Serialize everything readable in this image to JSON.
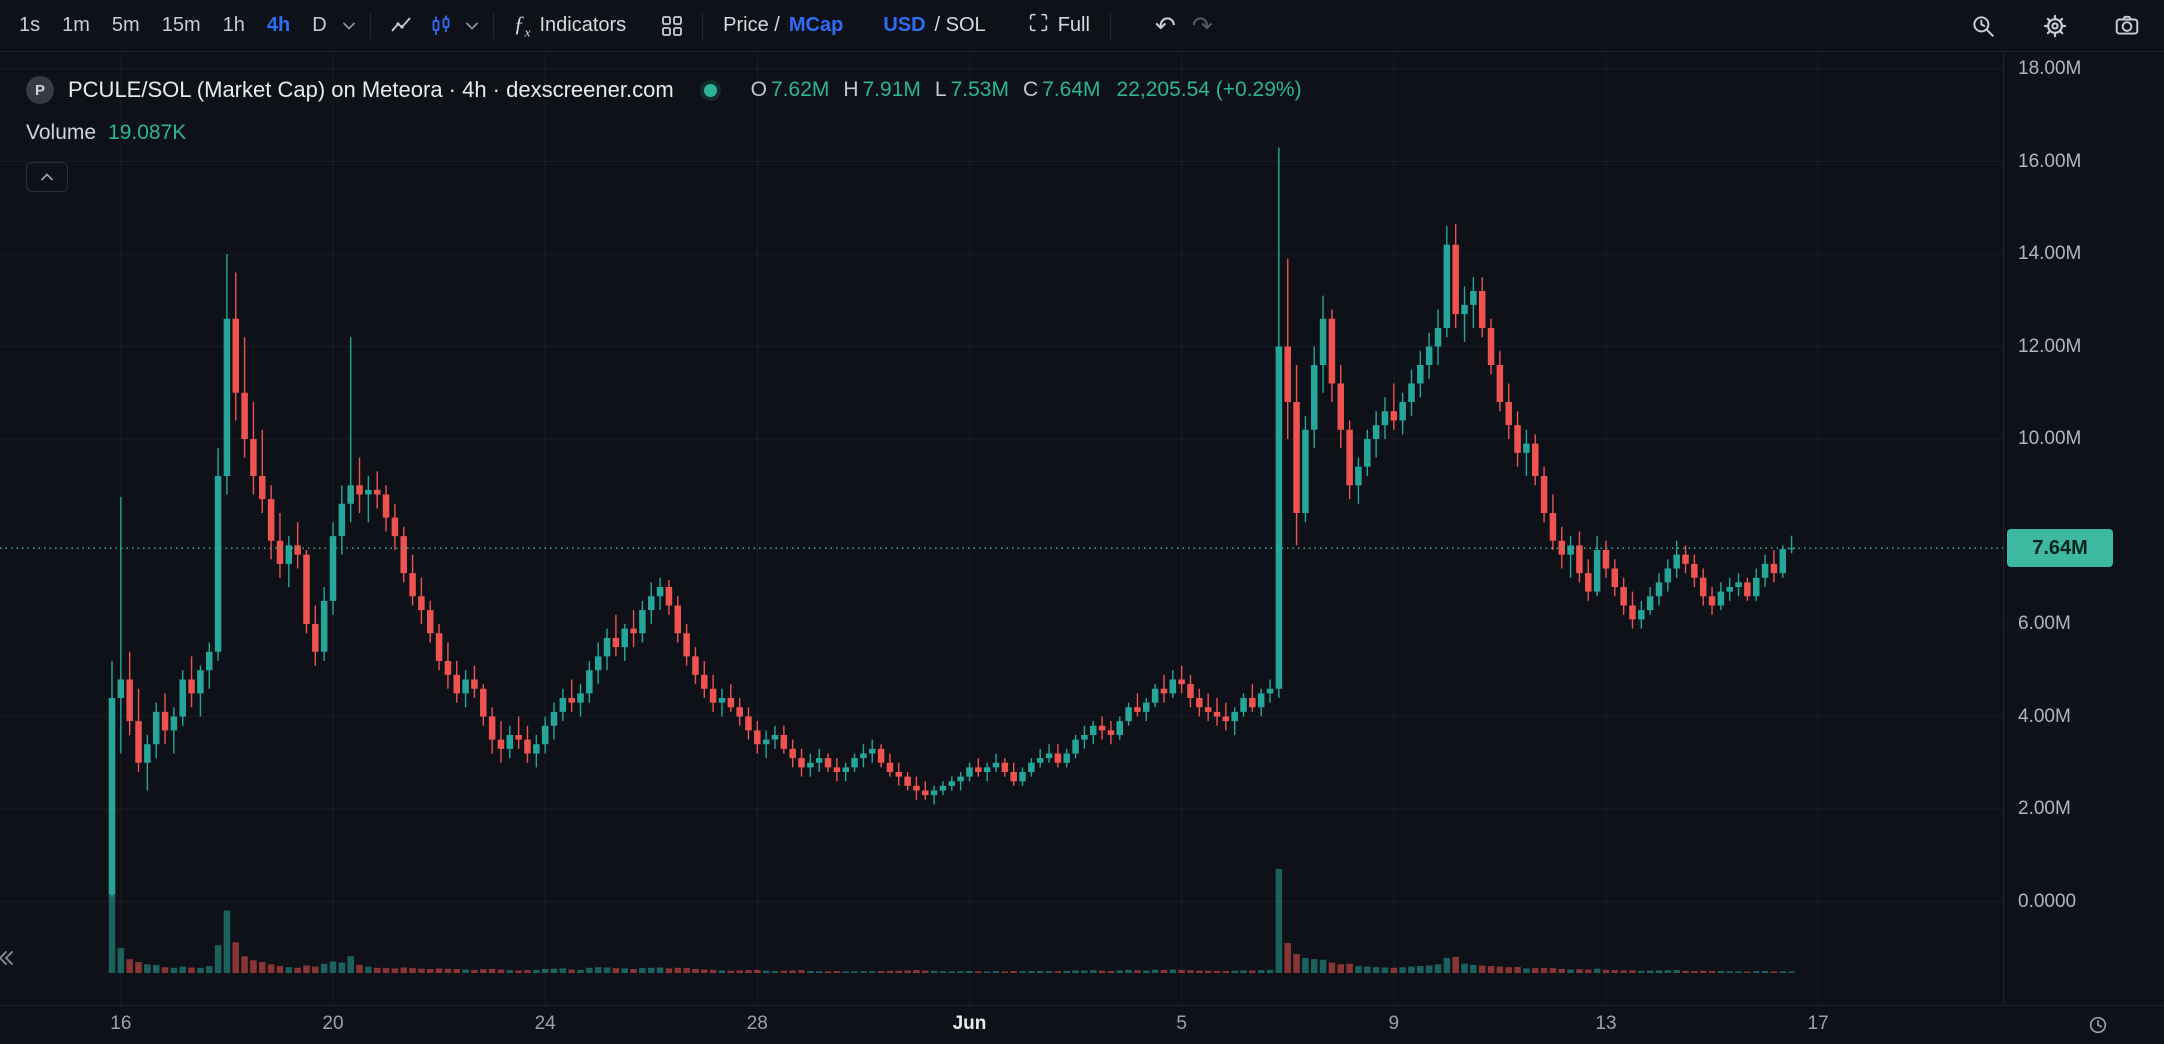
{
  "toolbar": {
    "timeframes": [
      "1s",
      "1m",
      "5m",
      "15m",
      "1h",
      "4h",
      "D"
    ],
    "active_timeframe": "4h",
    "indicators_label": "Indicators",
    "price_mcap": {
      "prefix": "Price / ",
      "active": "MCap"
    },
    "usd_sol": {
      "active": "USD",
      "suffix": " / SOL"
    },
    "full_label": "Full"
  },
  "icons": {
    "undo": "↶",
    "redo": "↷"
  },
  "legend": {
    "symbol_badge": "P",
    "title": "PCULE/SOL (Market Cap) on Meteora · 4h · dexscreener.com",
    "ohlc": {
      "o_label": "O",
      "o": "7.62M",
      "h_label": "H",
      "h": "7.91M",
      "l_label": "L",
      "l": "7.53M",
      "c_label": "C",
      "c": "7.64M",
      "change": "22,205.54 (+0.29%)"
    },
    "volume_label": "Volume",
    "volume_value": "19.087K"
  },
  "price_scale": {
    "labels": [
      {
        "text": "18.00M",
        "value": 18
      },
      {
        "text": "16.00M",
        "value": 16
      },
      {
        "text": "14.00M",
        "value": 14
      },
      {
        "text": "12.00M",
        "value": 12
      },
      {
        "text": "10.00M",
        "value": 10
      },
      {
        "text": "6.00M",
        "value": 6
      },
      {
        "text": "4.00M",
        "value": 4
      },
      {
        "text": "2.00M",
        "value": 2
      },
      {
        "text": "0.0000",
        "value": 0
      }
    ],
    "current": {
      "text": "7.64M",
      "value": 7.64
    }
  },
  "time_scale": {
    "ticks": [
      {
        "label": "16",
        "i": 1
      },
      {
        "label": "20",
        "i": 25
      },
      {
        "label": "24",
        "i": 49
      },
      {
        "label": "28",
        "i": 73
      },
      {
        "label": "Jun",
        "i": 97,
        "major": true
      },
      {
        "label": "5",
        "i": 121
      },
      {
        "label": "9",
        "i": 145
      },
      {
        "label": "13",
        "i": 169
      },
      {
        "label": "17",
        "i": 193
      }
    ]
  },
  "colors": {
    "accent_blue": "#2f6df6",
    "up": "#26a69a",
    "down": "#ef5350",
    "vol_up": "rgba(38,166,154,0.55)",
    "vol_down": "rgba(239,83,80,0.55)",
    "grid": "rgba(160,172,196,0.08)",
    "current_line": "#3cb9a0",
    "badge_bg": "#3cb9a0",
    "badge_text": "#07231d",
    "ohlc_green": "#2db49b"
  },
  "chart_data": {
    "type": "candlestick",
    "pair": "PCULE/SOL",
    "metric": "Market Cap",
    "dex": "Meteora",
    "source": "dexscreener.com",
    "interval": "4h",
    "y_range_millions": [
      0,
      18
    ],
    "volume_units": "K",
    "x_tick_labels": [
      "16",
      "20",
      "24",
      "28",
      "Jun",
      "5",
      "9",
      "13",
      "17"
    ],
    "ohlcv_millions": [
      [
        0.15,
        5.2,
        0.1,
        4.4,
        1560
      ],
      [
        4.4,
        8.75,
        3.2,
        4.8,
        430
      ],
      [
        4.8,
        5.4,
        3.6,
        3.9,
        240
      ],
      [
        3.9,
        4.6,
        2.8,
        3.0,
        190
      ],
      [
        3.0,
        3.6,
        2.4,
        3.4,
        150
      ],
      [
        3.4,
        4.3,
        3.1,
        4.1,
        140
      ],
      [
        4.1,
        4.5,
        3.4,
        3.7,
        100
      ],
      [
        3.7,
        4.2,
        3.2,
        4.0,
        90
      ],
      [
        4.0,
        5.0,
        3.8,
        4.8,
        110
      ],
      [
        4.8,
        5.3,
        4.2,
        4.5,
        95
      ],
      [
        4.5,
        5.1,
        4.0,
        5.0,
        90
      ],
      [
        5.0,
        5.6,
        4.6,
        5.4,
        120
      ],
      [
        5.4,
        9.8,
        5.2,
        9.2,
        480
      ],
      [
        9.2,
        14.0,
        8.8,
        12.6,
        1080
      ],
      [
        12.6,
        13.6,
        10.4,
        11.0,
        530
      ],
      [
        11.0,
        12.2,
        9.6,
        10.0,
        290
      ],
      [
        10.0,
        10.8,
        8.8,
        9.2,
        220
      ],
      [
        9.2,
        10.2,
        8.4,
        8.7,
        190
      ],
      [
        8.7,
        9.0,
        7.4,
        7.8,
        150
      ],
      [
        7.8,
        8.4,
        7.0,
        7.3,
        120
      ],
      [
        7.3,
        7.9,
        6.8,
        7.7,
        100
      ],
      [
        7.7,
        8.2,
        7.2,
        7.5,
        90
      ],
      [
        7.5,
        7.6,
        5.8,
        6.0,
        130
      ],
      [
        6.0,
        6.4,
        5.1,
        5.4,
        110
      ],
      [
        5.4,
        6.8,
        5.2,
        6.5,
        160
      ],
      [
        6.5,
        8.2,
        6.2,
        7.9,
        200
      ],
      [
        7.9,
        9.0,
        7.5,
        8.6,
        180
      ],
      [
        8.6,
        12.2,
        8.2,
        9.0,
        290
      ],
      [
        9.0,
        9.6,
        8.4,
        8.8,
        140
      ],
      [
        8.8,
        9.2,
        8.2,
        8.9,
        110
      ],
      [
        8.9,
        9.3,
        8.5,
        8.8,
        90
      ],
      [
        8.8,
        9.0,
        8.0,
        8.3,
        85
      ],
      [
        8.3,
        8.6,
        7.6,
        7.9,
        80
      ],
      [
        7.9,
        8.1,
        6.9,
        7.1,
        95
      ],
      [
        7.1,
        7.5,
        6.4,
        6.6,
        85
      ],
      [
        6.6,
        7.0,
        6.0,
        6.3,
        75
      ],
      [
        6.3,
        6.5,
        5.6,
        5.8,
        70
      ],
      [
        5.8,
        6.0,
        5.0,
        5.2,
        80
      ],
      [
        5.2,
        5.6,
        4.6,
        4.9,
        75
      ],
      [
        4.9,
        5.2,
        4.3,
        4.5,
        70
      ],
      [
        4.5,
        5.0,
        4.2,
        4.8,
        60
      ],
      [
        4.8,
        5.1,
        4.4,
        4.6,
        55
      ],
      [
        4.6,
        4.7,
        3.8,
        4.0,
        65
      ],
      [
        4.0,
        4.2,
        3.2,
        3.5,
        70
      ],
      [
        3.5,
        3.9,
        3.0,
        3.3,
        60
      ],
      [
        3.3,
        3.8,
        3.1,
        3.6,
        50
      ],
      [
        3.6,
        4.0,
        3.3,
        3.5,
        45
      ],
      [
        3.5,
        3.8,
        3.0,
        3.2,
        50
      ],
      [
        3.2,
        3.6,
        2.9,
        3.4,
        55
      ],
      [
        3.4,
        4.0,
        3.2,
        3.8,
        70
      ],
      [
        3.8,
        4.3,
        3.5,
        4.1,
        75
      ],
      [
        4.1,
        4.6,
        3.9,
        4.4,
        80
      ],
      [
        4.4,
        4.8,
        4.1,
        4.3,
        60
      ],
      [
        4.3,
        4.7,
        4.0,
        4.5,
        55
      ],
      [
        4.5,
        5.2,
        4.3,
        5.0,
        90
      ],
      [
        5.0,
        5.6,
        4.7,
        5.3,
        100
      ],
      [
        5.3,
        5.9,
        5.0,
        5.7,
        95
      ],
      [
        5.7,
        6.2,
        5.3,
        5.5,
        85
      ],
      [
        5.5,
        6.0,
        5.2,
        5.9,
        80
      ],
      [
        5.9,
        6.3,
        5.5,
        5.8,
        70
      ],
      [
        5.8,
        6.5,
        5.6,
        6.3,
        85
      ],
      [
        6.3,
        6.9,
        6.0,
        6.6,
        90
      ],
      [
        6.6,
        7.0,
        6.3,
        6.8,
        95
      ],
      [
        6.8,
        6.95,
        6.2,
        6.4,
        80
      ],
      [
        6.4,
        6.6,
        5.6,
        5.8,
        90
      ],
      [
        5.8,
        6.0,
        5.1,
        5.3,
        85
      ],
      [
        5.3,
        5.5,
        4.7,
        4.9,
        70
      ],
      [
        4.9,
        5.2,
        4.4,
        4.6,
        60
      ],
      [
        4.6,
        4.9,
        4.1,
        4.3,
        55
      ],
      [
        4.3,
        4.6,
        4.0,
        4.4,
        45
      ],
      [
        4.4,
        4.7,
        4.1,
        4.2,
        40
      ],
      [
        4.2,
        4.4,
        3.8,
        4.0,
        45
      ],
      [
        4.0,
        4.2,
        3.5,
        3.7,
        50
      ],
      [
        3.7,
        3.9,
        3.2,
        3.4,
        55
      ],
      [
        3.4,
        3.7,
        3.1,
        3.5,
        40
      ],
      [
        3.5,
        3.8,
        3.3,
        3.6,
        35
      ],
      [
        3.6,
        3.8,
        3.2,
        3.3,
        40
      ],
      [
        3.3,
        3.5,
        2.9,
        3.1,
        45
      ],
      [
        3.1,
        3.3,
        2.7,
        2.9,
        50
      ],
      [
        2.9,
        3.2,
        2.7,
        3.0,
        35
      ],
      [
        3.0,
        3.3,
        2.8,
        3.1,
        30
      ],
      [
        3.1,
        3.2,
        2.8,
        2.9,
        28
      ],
      [
        2.9,
        3.1,
        2.6,
        2.8,
        32
      ],
      [
        2.8,
        3.0,
        2.6,
        2.9,
        26
      ],
      [
        2.9,
        3.2,
        2.8,
        3.1,
        30
      ],
      [
        3.1,
        3.4,
        2.9,
        3.2,
        32
      ],
      [
        3.2,
        3.5,
        3.0,
        3.3,
        30
      ],
      [
        3.3,
        3.4,
        2.9,
        3.0,
        35
      ],
      [
        3.0,
        3.2,
        2.7,
        2.8,
        38
      ],
      [
        2.8,
        3.0,
        2.5,
        2.7,
        40
      ],
      [
        2.7,
        2.8,
        2.4,
        2.5,
        45
      ],
      [
        2.5,
        2.7,
        2.2,
        2.4,
        50
      ],
      [
        2.4,
        2.6,
        2.2,
        2.3,
        42
      ],
      [
        2.3,
        2.5,
        2.1,
        2.4,
        38
      ],
      [
        2.4,
        2.6,
        2.3,
        2.5,
        30
      ],
      [
        2.5,
        2.7,
        2.4,
        2.6,
        28
      ],
      [
        2.6,
        2.8,
        2.4,
        2.7,
        30
      ],
      [
        2.7,
        3.0,
        2.6,
        2.9,
        35
      ],
      [
        2.9,
        3.1,
        2.7,
        2.8,
        30
      ],
      [
        2.8,
        3.0,
        2.6,
        2.9,
        26
      ],
      [
        2.9,
        3.2,
        2.8,
        3.0,
        32
      ],
      [
        3.0,
        3.1,
        2.7,
        2.8,
        28
      ],
      [
        2.8,
        3.0,
        2.5,
        2.6,
        35
      ],
      [
        2.6,
        2.9,
        2.5,
        2.8,
        30
      ],
      [
        2.8,
        3.1,
        2.7,
        3.0,
        34
      ],
      [
        3.0,
        3.3,
        2.9,
        3.1,
        36
      ],
      [
        3.1,
        3.4,
        3.0,
        3.2,
        32
      ],
      [
        3.2,
        3.4,
        2.9,
        3.0,
        30
      ],
      [
        3.0,
        3.3,
        2.9,
        3.2,
        38
      ],
      [
        3.2,
        3.6,
        3.1,
        3.5,
        45
      ],
      [
        3.5,
        3.8,
        3.3,
        3.6,
        42
      ],
      [
        3.6,
        3.9,
        3.4,
        3.8,
        48
      ],
      [
        3.8,
        4.0,
        3.5,
        3.7,
        40
      ],
      [
        3.7,
        3.9,
        3.4,
        3.6,
        35
      ],
      [
        3.6,
        4.0,
        3.5,
        3.9,
        45
      ],
      [
        3.9,
        4.3,
        3.8,
        4.2,
        55
      ],
      [
        4.2,
        4.5,
        4.0,
        4.1,
        48
      ],
      [
        4.1,
        4.4,
        3.9,
        4.3,
        42
      ],
      [
        4.3,
        4.7,
        4.2,
        4.6,
        58
      ],
      [
        4.6,
        4.9,
        4.3,
        4.5,
        52
      ],
      [
        4.5,
        5.0,
        4.4,
        4.8,
        60
      ],
      [
        4.8,
        5.1,
        4.5,
        4.7,
        55
      ],
      [
        4.7,
        4.9,
        4.2,
        4.4,
        48
      ],
      [
        4.4,
        4.6,
        4.0,
        4.2,
        42
      ],
      [
        4.2,
        4.5,
        3.9,
        4.1,
        40
      ],
      [
        4.1,
        4.4,
        3.8,
        4.0,
        38
      ],
      [
        4.0,
        4.3,
        3.7,
        3.9,
        36
      ],
      [
        3.9,
        4.2,
        3.6,
        4.1,
        40
      ],
      [
        4.1,
        4.5,
        4.0,
        4.4,
        46
      ],
      [
        4.4,
        4.7,
        4.1,
        4.2,
        42
      ],
      [
        4.2,
        4.6,
        4.0,
        4.5,
        48
      ],
      [
        4.5,
        4.8,
        4.3,
        4.6,
        55
      ],
      [
        4.6,
        16.3,
        4.4,
        12.0,
        1800
      ],
      [
        12.0,
        13.9,
        10.0,
        10.8,
        520
      ],
      [
        10.8,
        11.6,
        7.7,
        8.4,
        330
      ],
      [
        8.4,
        10.5,
        8.2,
        10.2,
        260
      ],
      [
        10.2,
        12.0,
        9.8,
        11.6,
        240
      ],
      [
        11.6,
        13.1,
        11.0,
        12.6,
        230
      ],
      [
        12.6,
        12.8,
        10.8,
        11.2,
        180
      ],
      [
        11.2,
        11.6,
        9.8,
        10.2,
        150
      ],
      [
        10.2,
        10.4,
        8.7,
        9.0,
        160
      ],
      [
        9.0,
        9.6,
        8.6,
        9.4,
        120
      ],
      [
        9.4,
        10.2,
        9.2,
        10.0,
        110
      ],
      [
        10.0,
        10.6,
        9.6,
        10.3,
        100
      ],
      [
        10.3,
        10.9,
        10.0,
        10.6,
        95
      ],
      [
        10.6,
        11.2,
        10.2,
        10.4,
        90
      ],
      [
        10.4,
        11.0,
        10.1,
        10.8,
        100
      ],
      [
        10.8,
        11.5,
        10.5,
        11.2,
        110
      ],
      [
        11.2,
        11.9,
        10.9,
        11.6,
        120
      ],
      [
        11.6,
        12.3,
        11.3,
        12.0,
        130
      ],
      [
        12.0,
        12.8,
        11.6,
        12.4,
        150
      ],
      [
        12.4,
        14.6,
        12.2,
        14.2,
        260
      ],
      [
        14.2,
        14.65,
        12.4,
        12.7,
        280
      ],
      [
        12.7,
        13.3,
        12.1,
        12.9,
        160
      ],
      [
        12.9,
        13.5,
        12.4,
        13.2,
        140
      ],
      [
        13.2,
        13.5,
        12.2,
        12.4,
        130
      ],
      [
        12.4,
        12.6,
        11.4,
        11.6,
        120
      ],
      [
        11.6,
        11.9,
        10.6,
        10.8,
        110
      ],
      [
        10.8,
        11.2,
        10.0,
        10.3,
        100
      ],
      [
        10.3,
        10.6,
        9.4,
        9.7,
        105
      ],
      [
        9.7,
        10.2,
        9.2,
        9.9,
        80
      ],
      [
        9.9,
        10.1,
        9.0,
        9.2,
        85
      ],
      [
        9.2,
        9.4,
        8.2,
        8.4,
        90
      ],
      [
        8.4,
        8.8,
        7.6,
        7.8,
        85
      ],
      [
        7.8,
        8.1,
        7.2,
        7.5,
        70
      ],
      [
        7.5,
        7.9,
        7.0,
        7.7,
        60
      ],
      [
        7.7,
        8.0,
        6.9,
        7.1,
        65
      ],
      [
        7.1,
        7.4,
        6.5,
        6.7,
        60
      ],
      [
        6.7,
        7.9,
        6.6,
        7.6,
        75
      ],
      [
        7.6,
        7.8,
        7.0,
        7.2,
        55
      ],
      [
        7.2,
        7.4,
        6.6,
        6.8,
        50
      ],
      [
        6.8,
        7.0,
        6.2,
        6.4,
        45
      ],
      [
        6.4,
        6.7,
        5.9,
        6.1,
        48
      ],
      [
        6.1,
        6.5,
        5.9,
        6.3,
        40
      ],
      [
        6.3,
        6.8,
        6.2,
        6.6,
        42
      ],
      [
        6.6,
        7.1,
        6.4,
        6.9,
        45
      ],
      [
        6.9,
        7.4,
        6.7,
        7.2,
        48
      ],
      [
        7.2,
        7.8,
        7.0,
        7.5,
        50
      ],
      [
        7.5,
        7.7,
        7.1,
        7.3,
        38
      ],
      [
        7.3,
        7.5,
        6.8,
        7.0,
        35
      ],
      [
        7.0,
        7.2,
        6.4,
        6.6,
        40
      ],
      [
        6.6,
        6.8,
        6.2,
        6.4,
        36
      ],
      [
        6.4,
        6.9,
        6.3,
        6.7,
        34
      ],
      [
        6.7,
        7.0,
        6.5,
        6.8,
        30
      ],
      [
        6.8,
        7.1,
        6.6,
        6.9,
        28
      ],
      [
        6.9,
        7.0,
        6.5,
        6.6,
        26
      ],
      [
        6.6,
        7.2,
        6.5,
        7.0,
        32
      ],
      [
        7.0,
        7.5,
        6.8,
        7.3,
        35
      ],
      [
        7.3,
        7.6,
        6.9,
        7.1,
        28
      ],
      [
        7.1,
        7.7,
        7.0,
        7.62,
        30
      ],
      [
        7.62,
        7.91,
        7.53,
        7.64,
        19.087
      ]
    ]
  }
}
